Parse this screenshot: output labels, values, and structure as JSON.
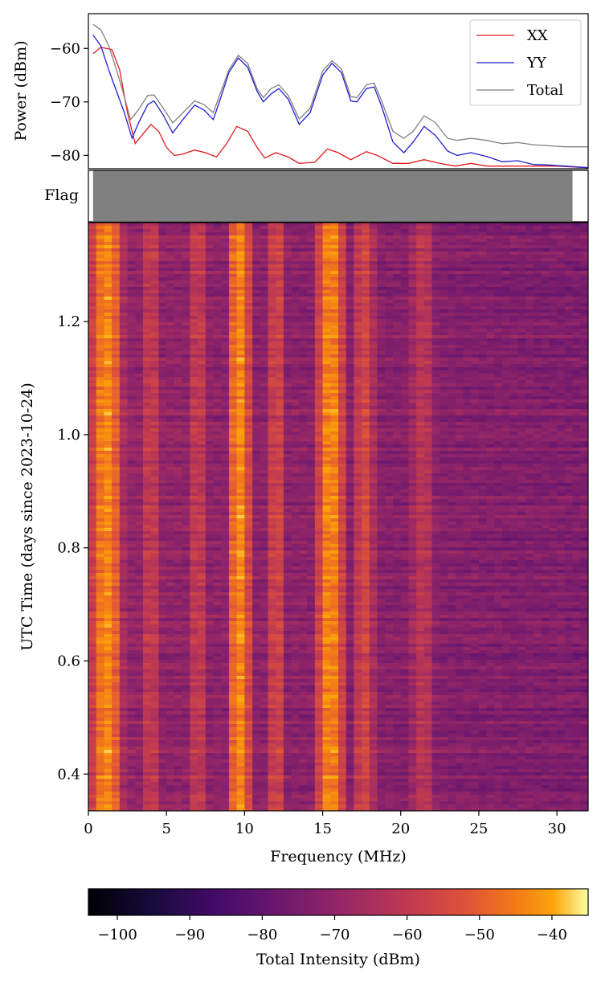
{
  "chart_data": [
    {
      "type": "line",
      "ylabel": "Power (dBm)",
      "xlim": [
        0,
        32
      ],
      "ylim": [
        -82.5,
        -53.5
      ],
      "yticks": [
        -60,
        -70,
        -80
      ],
      "ytick_labels": [
        "−60",
        "−70",
        "−80"
      ],
      "legend_position": "top-right",
      "series": [
        {
          "name": "XX",
          "color": "#e31a1c",
          "points": [
            [
              0.3,
              -61.0
            ],
            [
              0.8,
              -59.8
            ],
            [
              1.5,
              -60.2
            ],
            [
              2.0,
              -64
            ],
            [
              2.5,
              -72
            ],
            [
              3.0,
              -77.8
            ],
            [
              3.5,
              -76
            ],
            [
              4.0,
              -74.2
            ],
            [
              4.5,
              -75.5
            ],
            [
              5.0,
              -78.5
            ],
            [
              5.5,
              -80.0
            ],
            [
              6.0,
              -79.8
            ],
            [
              6.8,
              -79.0
            ],
            [
              7.5,
              -79.5
            ],
            [
              8.2,
              -80.3
            ],
            [
              8.8,
              -78
            ],
            [
              9.5,
              -74.6
            ],
            [
              10.2,
              -75.5
            ],
            [
              10.8,
              -78.5
            ],
            [
              11.3,
              -80.5
            ],
            [
              12.0,
              -79.5
            ],
            [
              12.8,
              -80.3
            ],
            [
              13.5,
              -81.5
            ],
            [
              14.5,
              -81.3
            ],
            [
              15.3,
              -78.8
            ],
            [
              16.0,
              -79.5
            ],
            [
              16.8,
              -80.8
            ],
            [
              17.8,
              -79.3
            ],
            [
              18.5,
              -80.0
            ],
            [
              19.5,
              -81.5
            ],
            [
              20.5,
              -81.5
            ],
            [
              21.5,
              -80.8
            ],
            [
              22.5,
              -81.5
            ],
            [
              23.5,
              -82.0
            ],
            [
              24.5,
              -81.5
            ],
            [
              25.5,
              -82.0
            ],
            [
              26.5,
              -82.0
            ],
            [
              27.5,
              -82.0
            ],
            [
              28.5,
              -82.0
            ],
            [
              30.0,
              -82.0
            ],
            [
              32.0,
              -82.3
            ]
          ]
        },
        {
          "name": "YY",
          "color": "#1f1fcc",
          "points": [
            [
              0.3,
              -57.5
            ],
            [
              0.8,
              -59.5
            ],
            [
              1.3,
              -64
            ],
            [
              1.8,
              -68
            ],
            [
              2.3,
              -72
            ],
            [
              2.8,
              -76.8
            ],
            [
              3.2,
              -74
            ],
            [
              3.8,
              -70.5
            ],
            [
              4.2,
              -69.8
            ],
            [
              4.8,
              -72.5
            ],
            [
              5.4,
              -75.8
            ],
            [
              6.0,
              -73.5
            ],
            [
              6.8,
              -70.6
            ],
            [
              7.4,
              -71.5
            ],
            [
              8.0,
              -73.3
            ],
            [
              8.5,
              -69
            ],
            [
              9.0,
              -64.5
            ],
            [
              9.6,
              -61.8
            ],
            [
              10.2,
              -63.5
            ],
            [
              10.8,
              -68
            ],
            [
              11.2,
              -70
            ],
            [
              11.7,
              -68.5
            ],
            [
              12.2,
              -67.5
            ],
            [
              12.8,
              -69.5
            ],
            [
              13.5,
              -74.2
            ],
            [
              14.2,
              -72
            ],
            [
              15.0,
              -65
            ],
            [
              15.6,
              -62.8
            ],
            [
              16.2,
              -64.5
            ],
            [
              16.8,
              -69.8
            ],
            [
              17.2,
              -70
            ],
            [
              17.8,
              -67.5
            ],
            [
              18.3,
              -67.2
            ],
            [
              18.8,
              -71
            ],
            [
              19.5,
              -77.5
            ],
            [
              20.2,
              -79.5
            ],
            [
              20.8,
              -77.5
            ],
            [
              21.5,
              -74.6
            ],
            [
              22.2,
              -76.2
            ],
            [
              23.0,
              -79.2
            ],
            [
              23.6,
              -80.0
            ],
            [
              24.5,
              -79.5
            ],
            [
              25.5,
              -80.2
            ],
            [
              26.5,
              -81.2
            ],
            [
              27.5,
              -81.0
            ],
            [
              28.5,
              -81.7
            ],
            [
              29.5,
              -81.8
            ],
            [
              30.5,
              -82.0
            ],
            [
              32.0,
              -82.3
            ]
          ]
        },
        {
          "name": "Total",
          "color": "#808080",
          "points": [
            [
              0.3,
              -55.5
            ],
            [
              0.8,
              -56.5
            ],
            [
              1.3,
              -59.5
            ],
            [
              1.8,
              -64
            ],
            [
              2.3,
              -69
            ],
            [
              2.7,
              -73.3
            ],
            [
              3.2,
              -71.5
            ],
            [
              3.8,
              -68.8
            ],
            [
              4.2,
              -68.7
            ],
            [
              4.8,
              -71.2
            ],
            [
              5.4,
              -73.9
            ],
            [
              6.0,
              -72.2
            ],
            [
              6.8,
              -69.8
            ],
            [
              7.4,
              -70.5
            ],
            [
              8.0,
              -72
            ],
            [
              8.5,
              -68
            ],
            [
              9.0,
              -64
            ],
            [
              9.6,
              -61.3
            ],
            [
              10.2,
              -62.8
            ],
            [
              10.8,
              -67.5
            ],
            [
              11.2,
              -69.2
            ],
            [
              11.7,
              -67.5
            ],
            [
              12.2,
              -66.8
            ],
            [
              12.8,
              -68.8
            ],
            [
              13.5,
              -73.2
            ],
            [
              14.2,
              -71.2
            ],
            [
              15.0,
              -64.2
            ],
            [
              15.6,
              -62.3
            ],
            [
              16.2,
              -63.8
            ],
            [
              16.8,
              -69
            ],
            [
              17.2,
              -69.2
            ],
            [
              17.8,
              -66.8
            ],
            [
              18.3,
              -66.5
            ],
            [
              18.8,
              -70
            ],
            [
              19.5,
              -75.5
            ],
            [
              20.2,
              -76.8
            ],
            [
              20.8,
              -75.5
            ],
            [
              21.5,
              -72.6
            ],
            [
              22.2,
              -73.8
            ],
            [
              23.0,
              -76.8
            ],
            [
              23.6,
              -77.2
            ],
            [
              24.5,
              -76.8
            ],
            [
              25.5,
              -77.2
            ],
            [
              26.5,
              -77.8
            ],
            [
              27.5,
              -77.6
            ],
            [
              28.5,
              -78.0
            ],
            [
              29.5,
              -78.2
            ],
            [
              30.5,
              -78.4
            ],
            [
              32.0,
              -78.4
            ]
          ]
        }
      ]
    },
    {
      "type": "bar",
      "ylabel": "Flag",
      "xlim": [
        0,
        32
      ],
      "flagged_range": [
        0.3,
        31.0
      ],
      "color": "#808080"
    },
    {
      "type": "heatmap",
      "xlabel": "Frequency (MHz)",
      "ylabel": "UTC Time (days since 2023-10-24)",
      "xlim": [
        0,
        32
      ],
      "ylim": [
        0.335,
        1.375
      ],
      "xticks": [
        0,
        5,
        10,
        15,
        20,
        25,
        30
      ],
      "yticks": [
        0.4,
        0.6,
        0.8,
        1.0,
        1.2
      ],
      "colormap": "inferno",
      "color_range": [
        -104,
        -35
      ],
      "bright_bands": [
        {
          "freq_range": [
            0,
            2.3
          ],
          "intensity": "high"
        },
        {
          "freq_range": [
            3.5,
            4.5
          ],
          "intensity": "medium"
        },
        {
          "freq_range": [
            6.5,
            7.5
          ],
          "intensity": "medium"
        },
        {
          "freq_range": [
            8.8,
            10.5
          ],
          "intensity": "high"
        },
        {
          "freq_range": [
            11.3,
            12.8
          ],
          "intensity": "medium"
        },
        {
          "freq_range": [
            14.5,
            16.5
          ],
          "intensity": "high"
        },
        {
          "freq_range": [
            16.8,
            18.5
          ],
          "intensity": "medium"
        },
        {
          "freq_range": [
            20.3,
            22.5
          ],
          "intensity": "low"
        }
      ],
      "colorbar": {
        "label": "Total Intensity (dBm)",
        "ticks": [
          -100,
          -90,
          -80,
          -70,
          -60,
          -50,
          -40
        ],
        "tick_labels": [
          "−100",
          "−90",
          "−80",
          "−70",
          "−60",
          "−50",
          "−40"
        ]
      }
    }
  ]
}
